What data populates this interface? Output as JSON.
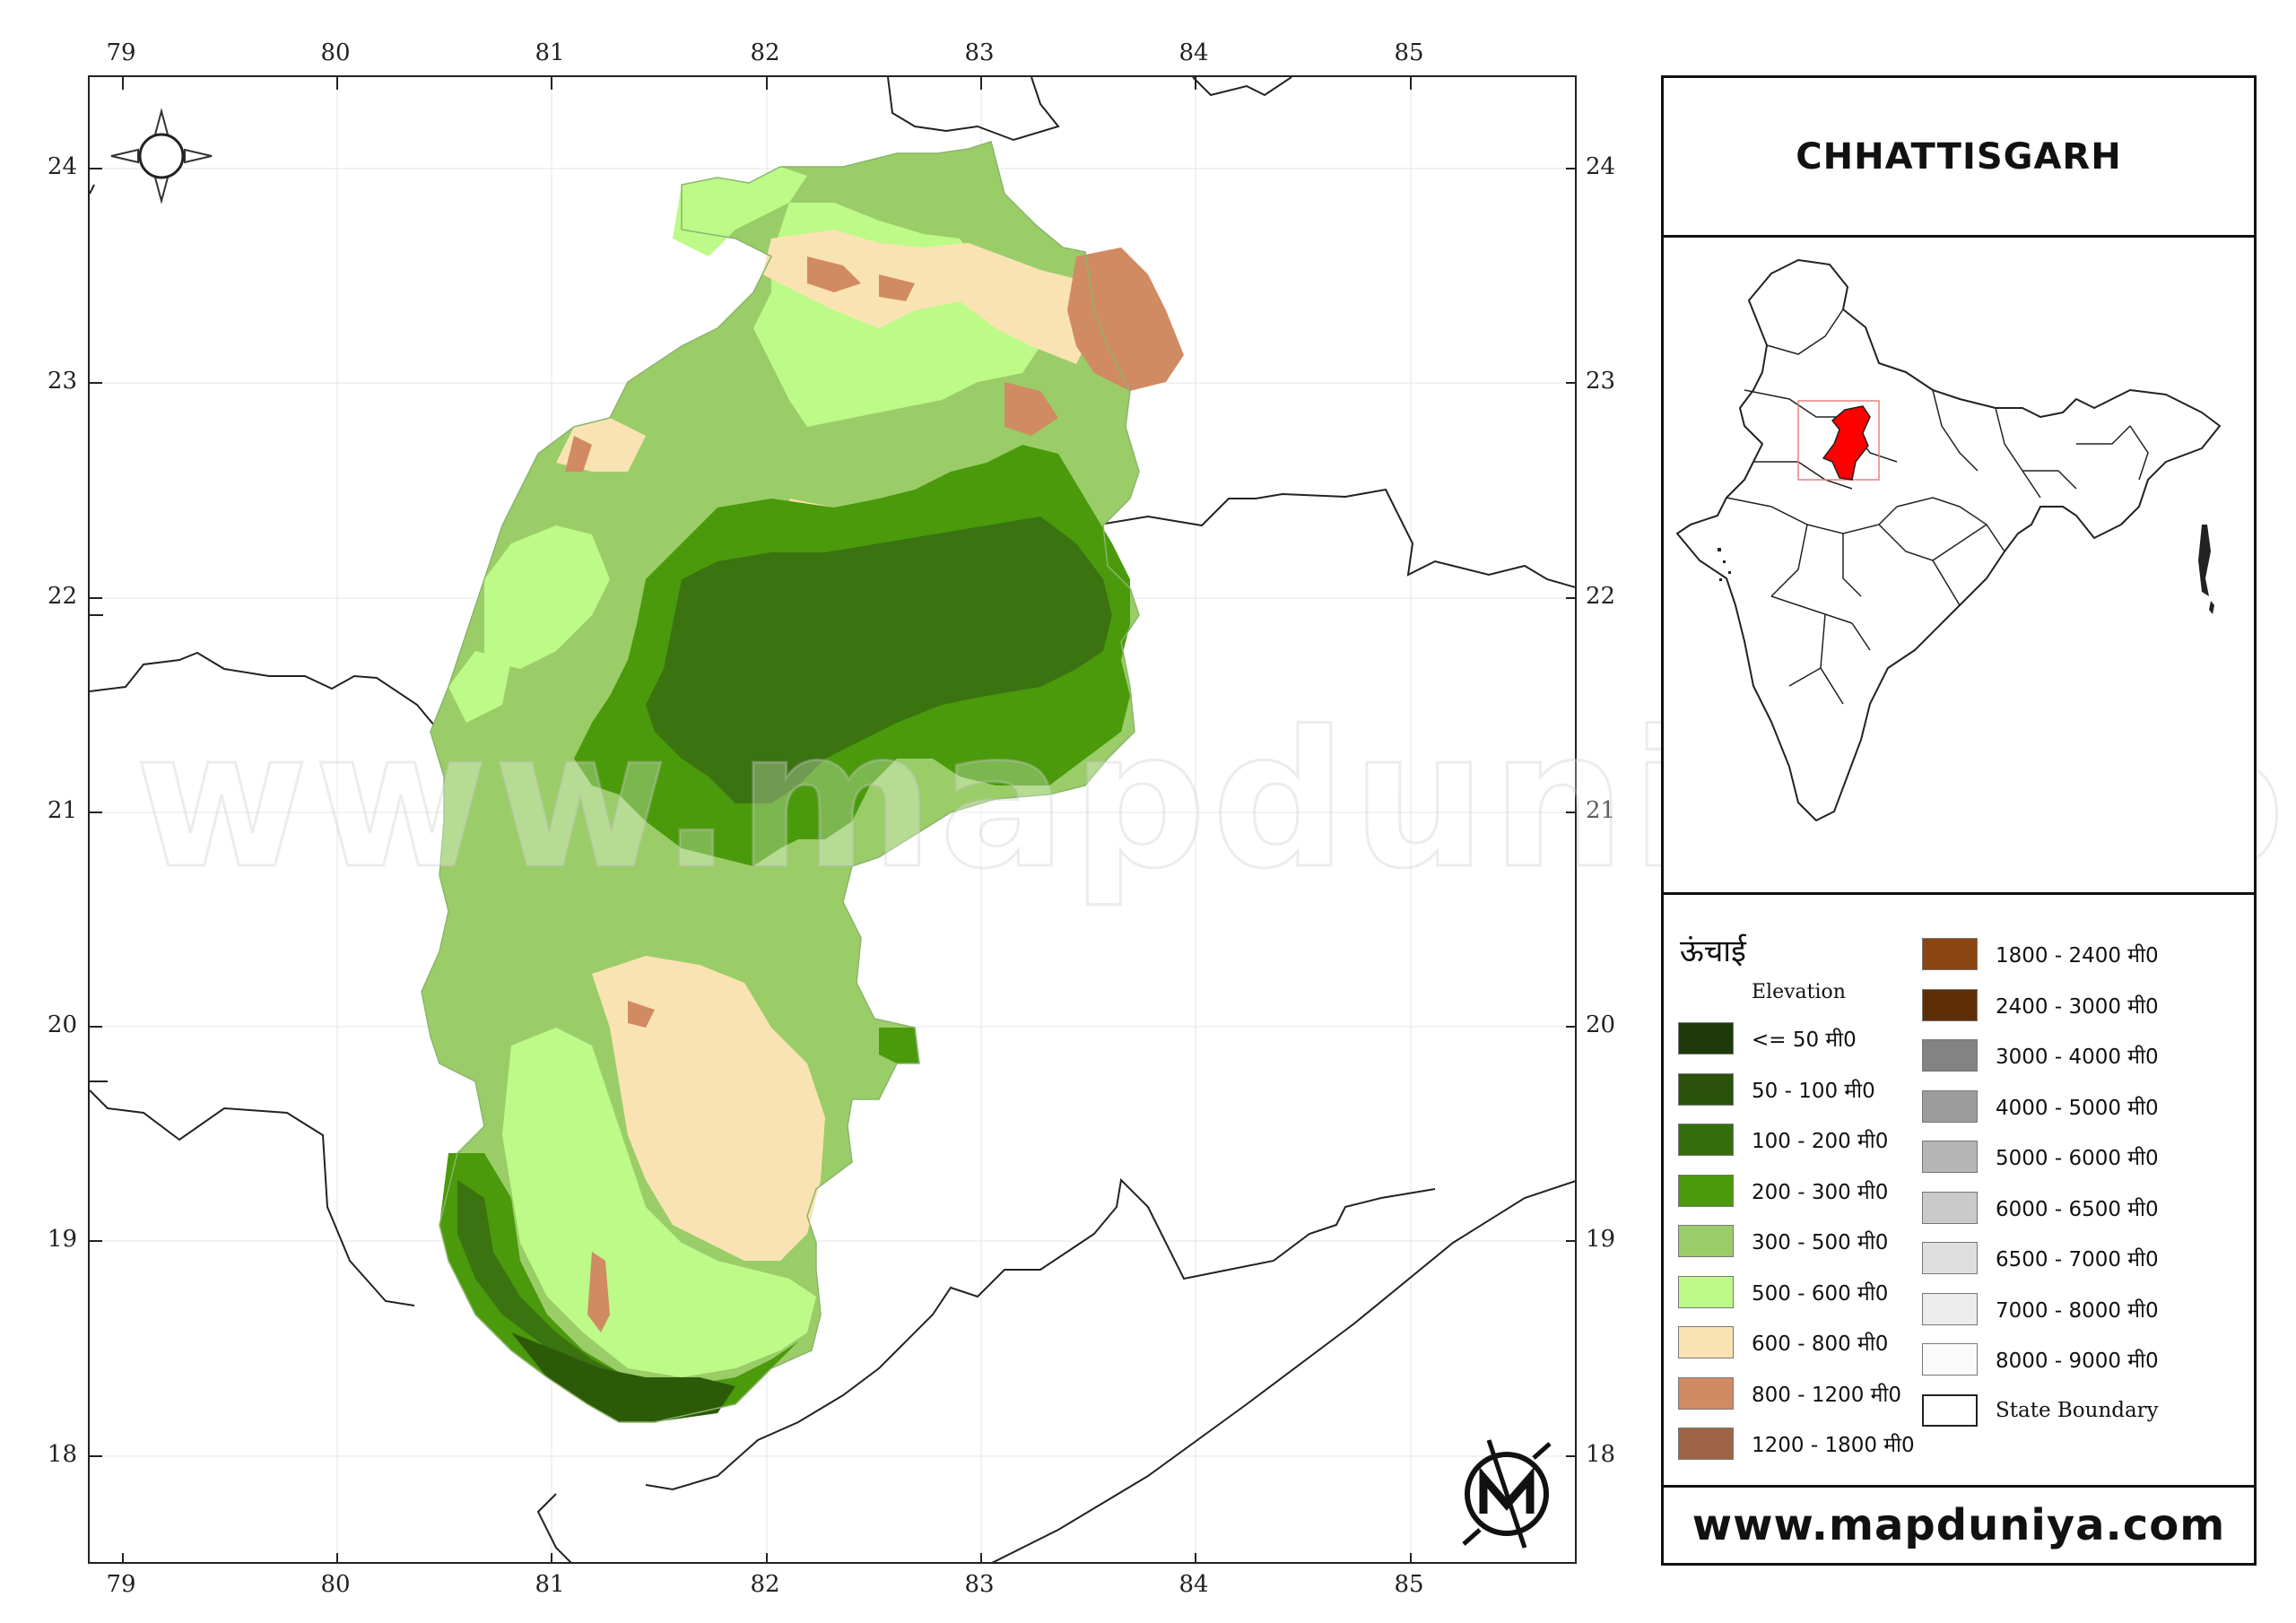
{
  "map": {
    "longitude_ticks": [
      "79",
      "80",
      "81",
      "82",
      "83",
      "84",
      "85"
    ],
    "latitude_ticks": [
      "24",
      "23",
      "22",
      "21",
      "20",
      "19",
      "18"
    ],
    "elevation_colors": {
      "c1": "#4a9a0c",
      "c2": "#3a7310",
      "c3": "#9acd68",
      "c4": "#bdfa88",
      "c5": "#fae3b3",
      "c6": "#d08b62",
      "c7": "#2d5a09"
    },
    "compass_icon": "north-arrow-compass",
    "logo_icon": "mapduniya-logo"
  },
  "watermark": "www.mapduniya.com",
  "title": "CHHATTISGARH",
  "inset": {
    "highlight_color": "#ff0000",
    "extent_box_color": "#e88080"
  },
  "legend": {
    "title": "ऊंचाई",
    "subtitle": "Elevation",
    "left_items": [
      {
        "label": "<= 50 मी0",
        "color": "#1e3a0b"
      },
      {
        "label": "50 - 100 मी0",
        "color": "#2a520a"
      },
      {
        "label": "100 - 200 मी0",
        "color": "#346e0c"
      },
      {
        "label": "200 - 300 मी0",
        "color": "#4a9a0c"
      },
      {
        "label": "300 - 500 मी0",
        "color": "#9acd68"
      },
      {
        "label": "500 - 600 मी0",
        "color": "#bdfa88"
      },
      {
        "label": "600 - 800 मी0",
        "color": "#fae3b3"
      },
      {
        "label": "800 - 1200 मी0",
        "color": "#d08b62"
      },
      {
        "label": "1200 - 1800 मी0",
        "color": "#9e6447"
      }
    ],
    "right_items": [
      {
        "label": "1800 - 2400 मी0",
        "color": "#8b4513"
      },
      {
        "label": "2400 - 3000 मी0",
        "color": "#5f2e05"
      },
      {
        "label": "3000 - 4000 मी0",
        "color": "#838383"
      },
      {
        "label": "4000 - 5000 मी0",
        "color": "#9c9c9c"
      },
      {
        "label": "5000 - 6000 मी0",
        "color": "#b5b5b5"
      },
      {
        "label": "6000 - 6500 मी0",
        "color": "#cacaca"
      },
      {
        "label": "6500 - 7000 मी0",
        "color": "#dedede"
      },
      {
        "label": "7000 - 8000 मी0",
        "color": "#ececec"
      },
      {
        "label": "8000 - 9000 मी0",
        "color": "#fafafa"
      },
      {
        "label": "State Boundary",
        "color": "#ffffff"
      }
    ]
  },
  "footer": "www.mapduniya.com"
}
